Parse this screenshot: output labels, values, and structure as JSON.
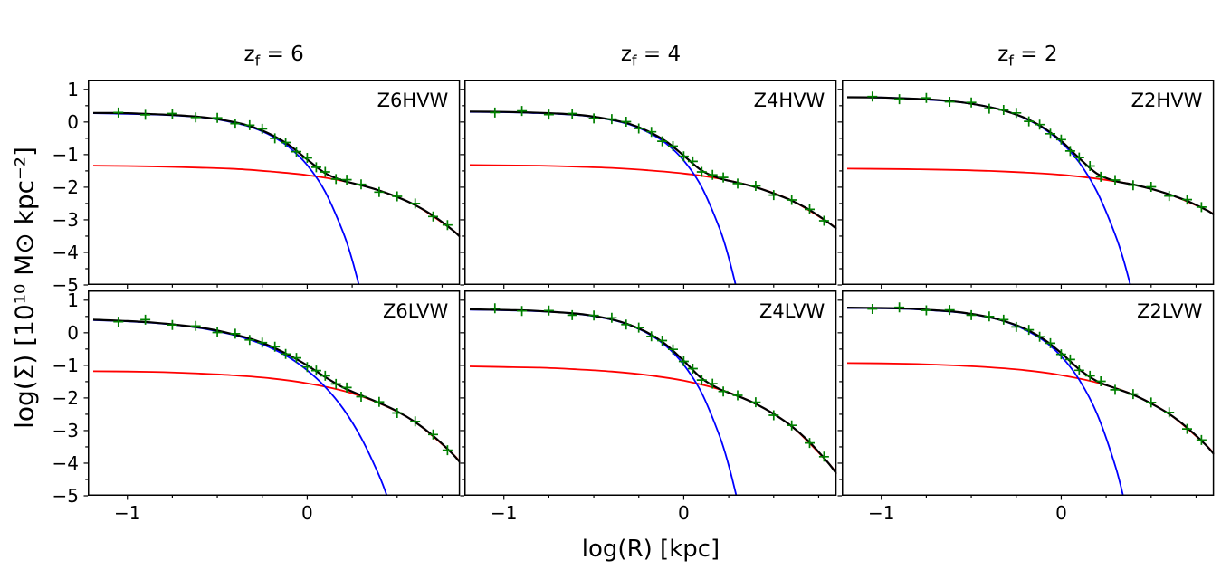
{
  "figure": {
    "background": "#ffffff",
    "ylabel": "log(Σ) [10¹⁰ M⊙ kpc⁻²]",
    "xlabel": "log(R) [kpc]",
    "axis": {
      "xlim": [
        -1.22,
        0.85
      ],
      "ylim": [
        -5,
        1.3
      ],
      "yticks": [
        {
          "v": 1,
          "label": "1"
        },
        {
          "v": 0,
          "label": "0"
        },
        {
          "v": -1,
          "label": "−1"
        },
        {
          "v": -2,
          "label": "−2"
        },
        {
          "v": -3,
          "label": "−3"
        },
        {
          "v": -4,
          "label": "−4"
        },
        {
          "v": -5,
          "label": "−5"
        }
      ],
      "xticks": [
        {
          "v": -1,
          "label": "−1"
        },
        {
          "v": 0,
          "label": "0"
        }
      ],
      "x_minor_step": 0.25,
      "y_minor_step": 0.5,
      "grid": false
    },
    "colors": {
      "total": "#000000",
      "bulge": "#0000ff",
      "disk": "#ff0000",
      "points": "#008000",
      "spine": "#000000"
    }
  },
  "column_titles": [
    {
      "prefix": "z",
      "sub": "f",
      "suffix": " = 6"
    },
    {
      "prefix": "z",
      "sub": "f",
      "suffix": " = 4"
    },
    {
      "prefix": "z",
      "sub": "f",
      "suffix": " = 2"
    }
  ],
  "shared": {
    "total_x": [
      -1.19,
      -1.0,
      -0.85,
      -0.7,
      -0.55,
      -0.4,
      -0.3,
      -0.2,
      -0.1,
      0,
      0.1,
      0.2,
      0.3,
      0.4,
      0.5,
      0.6,
      0.7,
      0.8,
      0.85
    ],
    "disk_x": [
      -1.19,
      -1.0,
      -0.8,
      -0.6,
      -0.4,
      -0.2,
      0,
      0.2,
      0.4,
      0.6,
      0.8,
      0.85
    ],
    "scatter_x": [
      -1.05,
      -0.9,
      -0.75,
      -0.62,
      -0.5,
      -0.4,
      -0.32,
      -0.25,
      -0.18,
      -0.12,
      -0.06,
      0,
      0.05,
      0.1,
      0.16,
      0.22,
      0.3,
      0.4,
      0.5,
      0.6,
      0.7,
      0.78
    ]
  },
  "chart_data": [
    {
      "type": "line+scatter",
      "label": "Z6HVW",
      "series": [
        {
          "name": "disk",
          "y": [
            -1.34,
            -1.35,
            -1.37,
            -1.4,
            -1.44,
            -1.52,
            -1.63,
            -1.81,
            -2.1,
            -2.55,
            -3.28,
            -3.52
          ]
        },
        {
          "name": "bulge",
          "x": [
            -1.19,
            -1.0,
            -0.85,
            -0.7,
            -0.55,
            -0.4,
            -0.3,
            -0.2,
            -0.1,
            0,
            0.1,
            0.2,
            0.25,
            0.3
          ],
          "y": [
            0.27,
            0.25,
            0.23,
            0.19,
            0.12,
            -0.03,
            -0.18,
            -0.42,
            -0.78,
            -1.32,
            -2.14,
            -3.39,
            -4.23,
            -5.27
          ]
        },
        {
          "name": "total",
          "y": [
            0.28,
            0.27,
            0.24,
            0.2,
            0.13,
            -0.01,
            -0.16,
            -0.39,
            -0.71,
            -1.15,
            -1.57,
            -1.8,
            -1.94,
            -2.1,
            -2.3,
            -2.55,
            -2.87,
            -3.28,
            -3.52
          ]
        }
      ],
      "scatter": {
        "y": [
          0.29,
          0.22,
          0.26,
          0.14,
          0.13,
          -0.05,
          -0.1,
          -0.21,
          -0.5,
          -0.63,
          -0.91,
          -1.1,
          -1.39,
          -1.53,
          -1.75,
          -1.77,
          -1.91,
          -2.15,
          -2.28,
          -2.5,
          -2.9,
          -3.16
        ]
      }
    },
    {
      "type": "line+scatter",
      "label": "Z4HVW",
      "series": [
        {
          "name": "disk",
          "y": [
            -1.32,
            -1.33,
            -1.34,
            -1.37,
            -1.41,
            -1.48,
            -1.58,
            -1.74,
            -2.0,
            -2.41,
            -3.07,
            -3.28
          ]
        },
        {
          "name": "bulge",
          "x": [
            -1.19,
            -1.0,
            -0.85,
            -0.7,
            -0.55,
            -0.4,
            -0.3,
            -0.2,
            -0.1,
            0,
            0.1,
            0.2,
            0.25,
            0.3
          ],
          "y": [
            0.31,
            0.3,
            0.28,
            0.25,
            0.19,
            0.06,
            -0.08,
            -0.31,
            -0.65,
            -1.18,
            -2.0,
            -3.28,
            -4.16,
            -5.25
          ]
        },
        {
          "name": "total",
          "y": [
            0.32,
            0.31,
            0.29,
            0.26,
            0.2,
            0.07,
            -0.06,
            -0.28,
            -0.59,
            -1.03,
            -1.49,
            -1.73,
            -1.86,
            -2.0,
            -2.19,
            -2.41,
            -2.7,
            -3.07,
            -3.28
          ]
        }
      ],
      "scatter": {
        "y": [
          0.29,
          0.34,
          0.23,
          0.26,
          0.11,
          0.09,
          0.01,
          -0.2,
          -0.3,
          -0.59,
          -0.74,
          -1.05,
          -1.21,
          -1.53,
          -1.62,
          -1.7,
          -1.89,
          -1.96,
          -2.24,
          -2.39,
          -2.68,
          -3.03
        ]
      }
    },
    {
      "type": "line+scatter",
      "label": "Z2HVW",
      "series": [
        {
          "name": "disk",
          "y": [
            -1.43,
            -1.44,
            -1.45,
            -1.47,
            -1.5,
            -1.55,
            -1.62,
            -1.74,
            -1.92,
            -2.22,
            -2.68,
            -2.84
          ]
        },
        {
          "name": "bulge",
          "x": [
            -1.19,
            -1.0,
            -0.85,
            -0.7,
            -0.55,
            -0.4,
            -0.3,
            -0.2,
            -0.1,
            0,
            0.1,
            0.2,
            0.3,
            0.35,
            0.4
          ],
          "y": [
            0.76,
            0.75,
            0.72,
            0.67,
            0.6,
            0.46,
            0.32,
            0.11,
            -0.19,
            -0.62,
            -1.24,
            -2.15,
            -3.45,
            -4.3,
            -5.33
          ]
        },
        {
          "name": "total",
          "y": [
            0.76,
            0.75,
            0.72,
            0.68,
            0.6,
            0.46,
            0.32,
            0.12,
            -0.17,
            -0.58,
            -1.11,
            -1.59,
            -1.81,
            -1.92,
            -2.05,
            -2.22,
            -2.42,
            -2.68,
            -2.84
          ]
        }
      ],
      "scatter": {
        "y": [
          0.78,
          0.7,
          0.74,
          0.62,
          0.6,
          0.41,
          0.37,
          0.28,
          0.02,
          -0.08,
          -0.36,
          -0.54,
          -0.89,
          -1.09,
          -1.35,
          -1.68,
          -1.78,
          -1.94,
          -1.99,
          -2.27,
          -2.38,
          -2.61
        ]
      }
    },
    {
      "type": "line+scatter",
      "label": "Z6LVW",
      "series": [
        {
          "name": "disk",
          "y": [
            -1.18,
            -1.19,
            -1.21,
            -1.25,
            -1.31,
            -1.4,
            -1.55,
            -1.78,
            -2.16,
            -2.74,
            -3.67,
            -3.98
          ]
        },
        {
          "name": "bulge",
          "x": [
            -1.19,
            -1.0,
            -0.85,
            -0.7,
            -0.55,
            -0.4,
            -0.3,
            -0.2,
            -0.1,
            0,
            0.1,
            0.2,
            0.3,
            0.4,
            0.45
          ],
          "y": [
            0.39,
            0.35,
            0.3,
            0.22,
            0.1,
            -0.08,
            -0.25,
            -0.47,
            -0.76,
            -1.15,
            -1.66,
            -2.33,
            -3.22,
            -4.38,
            -5.1
          ]
        },
        {
          "name": "total",
          "y": [
            0.4,
            0.36,
            0.31,
            0.23,
            0.12,
            -0.06,
            -0.21,
            -0.42,
            -0.69,
            -1.0,
            -1.36,
            -1.68,
            -1.92,
            -2.15,
            -2.41,
            -2.74,
            -3.16,
            -3.67,
            -3.98
          ]
        }
      ],
      "scatter": {
        "y": [
          0.34,
          0.4,
          0.24,
          0.21,
          0.01,
          -0.03,
          -0.22,
          -0.3,
          -0.43,
          -0.65,
          -0.77,
          -1.05,
          -1.16,
          -1.32,
          -1.57,
          -1.68,
          -1.96,
          -2.12,
          -2.46,
          -2.72,
          -3.12,
          -3.6
        ]
      }
    },
    {
      "type": "line+scatter",
      "label": "Z4LVW",
      "series": [
        {
          "name": "disk",
          "y": [
            -1.03,
            -1.05,
            -1.07,
            -1.12,
            -1.19,
            -1.3,
            -1.47,
            -1.74,
            -2.18,
            -2.87,
            -3.97,
            -4.33
          ]
        },
        {
          "name": "bulge",
          "x": [
            -1.19,
            -1.0,
            -0.85,
            -0.7,
            -0.55,
            -0.4,
            -0.3,
            -0.2,
            -0.1,
            0,
            0.1,
            0.2,
            0.25,
            0.3
          ],
          "y": [
            0.71,
            0.69,
            0.67,
            0.63,
            0.55,
            0.4,
            0.23,
            -0.02,
            -0.4,
            -0.98,
            -1.85,
            -3.18,
            -4.07,
            -5.17
          ]
        },
        {
          "name": "total",
          "y": [
            0.72,
            0.7,
            0.68,
            0.63,
            0.56,
            0.41,
            0.24,
            0.0,
            -0.36,
            -0.86,
            -1.4,
            -1.73,
            -1.94,
            -2.18,
            -2.49,
            -2.87,
            -3.36,
            -3.97,
            -4.33
          ]
        }
      ],
      "scatter": {
        "y": [
          0.75,
          0.67,
          0.68,
          0.54,
          0.53,
          0.46,
          0.25,
          0.16,
          -0.11,
          -0.24,
          -0.51,
          -0.88,
          -1.1,
          -1.45,
          -1.56,
          -1.8,
          -1.92,
          -2.13,
          -2.53,
          -2.84,
          -3.38,
          -3.8
        ]
      }
    },
    {
      "type": "line+scatter",
      "label": "Z2LVW",
      "series": [
        {
          "name": "disk",
          "y": [
            -0.93,
            -0.94,
            -0.96,
            -1.0,
            -1.06,
            -1.15,
            -1.3,
            -1.53,
            -1.9,
            -2.49,
            -3.42,
            -3.73
          ]
        },
        {
          "name": "bulge",
          "x": [
            -1.19,
            -1.0,
            -0.85,
            -0.7,
            -0.55,
            -0.4,
            -0.3,
            -0.2,
            -0.1,
            0,
            0.1,
            0.2,
            0.3,
            0.35
          ],
          "y": [
            0.76,
            0.75,
            0.73,
            0.68,
            0.61,
            0.47,
            0.32,
            0.09,
            -0.23,
            -0.72,
            -1.44,
            -2.5,
            -4.07,
            -5.13
          ]
        },
        {
          "name": "total",
          "y": [
            0.77,
            0.76,
            0.74,
            0.69,
            0.62,
            0.48,
            0.33,
            0.12,
            -0.19,
            -0.62,
            -1.12,
            -1.49,
            -1.7,
            -1.9,
            -2.17,
            -2.49,
            -2.91,
            -3.42,
            -3.73
          ]
        }
      ],
      "scatter": {
        "y": [
          0.73,
          0.78,
          0.69,
          0.7,
          0.54,
          0.5,
          0.4,
          0.18,
          0.09,
          -0.12,
          -0.32,
          -0.66,
          -0.82,
          -1.15,
          -1.32,
          -1.49,
          -1.75,
          -1.88,
          -2.14,
          -2.44,
          -2.95,
          -3.29
        ]
      }
    }
  ]
}
